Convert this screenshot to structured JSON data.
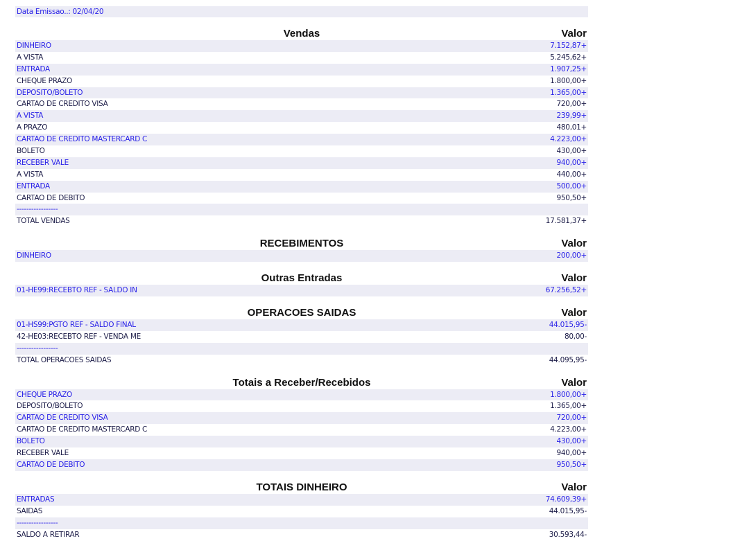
{
  "date_label": "Data Emissao..: 02/04/20",
  "value_header": "Valor",
  "sections": [
    {
      "title": "Vendas",
      "rows": [
        [
          "DINHEIRO",
          "7.152,87+"
        ],
        [
          "A VISTA",
          "5.245,62+"
        ],
        [
          "ENTRADA",
          "1.907,25+"
        ],
        [
          "CHEQUE PRAZO",
          "1.800,00+"
        ],
        [
          "DEPOSITO/BOLETO",
          "1.365,00+"
        ],
        [
          "CARTAO DE CREDITO VISA",
          "720,00+"
        ],
        [
          "A VISTA",
          "239,99+"
        ],
        [
          "A PRAZO",
          "480,01+"
        ],
        [
          "CARTAO DE CREDITO MASTERCARD C",
          "4.223,00+"
        ],
        [
          "BOLETO",
          "430,00+"
        ],
        [
          "RECEBER VALE",
          "940,00+"
        ],
        [
          "A VISTA",
          "440,00+"
        ],
        [
          "ENTRADA",
          "500,00+"
        ],
        [
          "CARTAO DE DEBITO",
          "950,50+"
        ],
        [
          "-----------------",
          ""
        ],
        [
          "TOTAL VENDAS",
          "17.581,37+"
        ]
      ]
    },
    {
      "title": "RECEBIMENTOS",
      "rows": [
        [
          "DINHEIRO",
          "200,00+"
        ]
      ]
    },
    {
      "title": "Outras Entradas",
      "rows": [
        [
          "01-HE99:RECEBTO REF - SALDO IN",
          "67.256,52+"
        ]
      ]
    },
    {
      "title": "OPERACOES SAIDAS",
      "rows": [
        [
          "01-HS99:PGTO REF - SALDO FINAL",
          "44.015,95-"
        ],
        [
          "42-HE03:RECEBTO REF - VENDA ME",
          "80,00-"
        ],
        [
          "-----------------",
          ""
        ],
        [
          "TOTAL OPERACOES SAIDAS",
          "44.095,95-"
        ]
      ]
    },
    {
      "title": "Totais a Receber/Recebidos",
      "rows": [
        [
          "CHEQUE PRAZO",
          "1.800,00+"
        ],
        [
          "DEPOSITO/BOLETO",
          "1.365,00+"
        ],
        [
          "CARTAO DE CREDITO VISA",
          "720,00+"
        ],
        [
          "CARTAO DE CREDITO MASTERCARD C",
          "4.223,00+"
        ],
        [
          "BOLETO",
          "430,00+"
        ],
        [
          "RECEBER VALE",
          "940,00+"
        ],
        [
          "CARTAO DE DEBITO",
          "950,50+"
        ]
      ]
    },
    {
      "title": "TOTAIS DINHEIRO",
      "rows": [
        [
          "ENTRADAS",
          "74.609,39+"
        ],
        [
          "SAIDAS",
          "44.015,95-"
        ],
        [
          "-----------------",
          ""
        ],
        [
          "SALDO A RETIRAR",
          "30.593,44-"
        ]
      ]
    }
  ],
  "colors": {
    "shade_bg": "#ececf5",
    "shade_text": "#2a22e8",
    "plain_text": "#1c1c48"
  }
}
